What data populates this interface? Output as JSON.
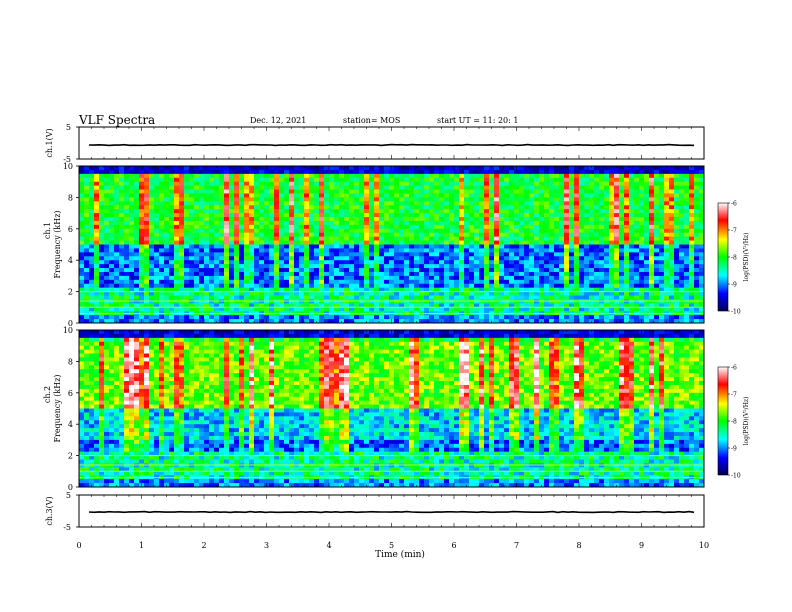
{
  "header": {
    "title": "VLF Spectra",
    "date": "Dec. 12, 2021",
    "station": "station= MOS",
    "start": "start  UT =   11: 20: 1"
  },
  "colors": {
    "background": "#ffffff",
    "spectrogram_low": "#00004a",
    "spectrogram_high": "#ff0000",
    "colormap": [
      "#ffffff",
      "#ff0000",
      "#ffff00",
      "#00ff00",
      "#00ffff",
      "#0000ff",
      "#000050"
    ]
  },
  "chart_data": [
    {
      "type": "line",
      "id": "ch1-waveform",
      "ylabel": "ch.1(V)",
      "ylim": [
        -5,
        5
      ],
      "yticks": [
        "5",
        "-5"
      ],
      "xlim": [
        0,
        10
      ],
      "series": [
        {
          "values_approx": 0.0
        }
      ]
    },
    {
      "type": "heatmap",
      "id": "ch1-spectrogram",
      "ylabel_top": "ch.1",
      "ylabel": "Frequency  (kHz)",
      "ylim": [
        0,
        10
      ],
      "yticks": [
        "0",
        "2",
        "4",
        "6",
        "8",
        "10"
      ],
      "xlim": [
        0,
        10
      ],
      "colorbar": {
        "label": "log(PSD)(V²/Hz)",
        "ticks": [
          "-6",
          "-7",
          "-8",
          "-9",
          "-10"
        ],
        "range": [
          -10,
          -6
        ]
      }
    },
    {
      "type": "heatmap",
      "id": "ch2-spectrogram",
      "ylabel_top": "ch.2",
      "ylabel": "Frequency  (kHz)",
      "ylim": [
        0,
        10
      ],
      "yticks": [
        "0",
        "2",
        "4",
        "6",
        "8",
        "10"
      ],
      "xlim": [
        0,
        10
      ],
      "colorbar": {
        "label": "log(PSD)(V²/Hz)",
        "ticks": [
          "-6",
          "-7",
          "-8",
          "-9",
          "-10"
        ],
        "range": [
          -10,
          -6
        ]
      }
    },
    {
      "type": "line",
      "id": "ch3-waveform",
      "ylabel": "ch.3(V)",
      "ylim": [
        -5,
        5
      ],
      "yticks": [
        "5",
        "-5"
      ],
      "xlim": [
        0,
        10
      ],
      "series": [
        {
          "values_approx": 0.0
        }
      ]
    }
  ],
  "xaxis": {
    "label": "Time  (min)",
    "ticks": [
      "0",
      "1",
      "2",
      "3",
      "4",
      "5",
      "6",
      "7",
      "8",
      "9",
      "10"
    ]
  }
}
